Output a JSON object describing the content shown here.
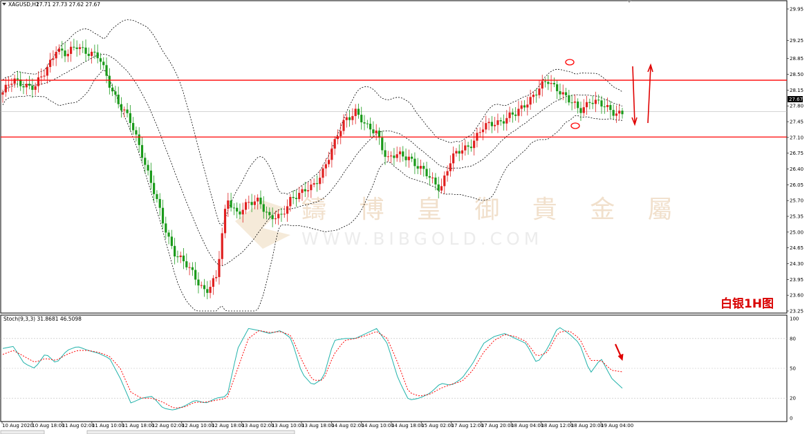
{
  "header": {
    "symbol": "XAGUSD,H1",
    "ohlc": "27.71 27.73 27.62 27.67",
    "indicator": "Stoch(9,3,3) 31.8681 46.5098"
  },
  "annotation": {
    "title": "白银1H图"
  },
  "watermark": {
    "cn": "鑄 博 皇 御 貴 金 屬",
    "url": "WWW.BIBGOLD.COM"
  },
  "chart_data": [
    {
      "type": "candlestick",
      "instrument": "XAGUSD",
      "timeframe": "H1",
      "y_ticks": [
        "29.95",
        "29.25",
        "28.85",
        "28.50",
        "28.15",
        "27.80",
        "27.45",
        "27.10",
        "26.75",
        "26.40",
        "26.05",
        "25.70",
        "25.35",
        "25.00",
        "24.65",
        "24.30",
        "23.95",
        "23.60",
        "23.25"
      ],
      "ylim": [
        23.2,
        29.95
      ],
      "current_price": "27.67",
      "horizontal_levels": [
        28.37,
        27.11
      ],
      "close_path": [
        28.1,
        28.35,
        28.3,
        28.2,
        28.55,
        29.1,
        28.9,
        29.15,
        29.0,
        28.85,
        28.3,
        27.8,
        27.4,
        26.8,
        26.0,
        25.2,
        24.6,
        24.3,
        24.0,
        23.7,
        23.95,
        25.8,
        25.4,
        25.6,
        25.75,
        25.3,
        25.3,
        25.8,
        25.85,
        26.0,
        26.4,
        26.9,
        27.5,
        27.7,
        27.3,
        27.25,
        26.6,
        26.7,
        26.7,
        26.4,
        26.2,
        26.0,
        26.6,
        26.85,
        27.0,
        27.3,
        27.45,
        27.5,
        27.6,
        27.9,
        28.1,
        28.35,
        28.2,
        27.9,
        27.7,
        27.95,
        27.8,
        27.7,
        27.65
      ],
      "x_ticks": [
        "10 Aug 2020",
        "10 Aug 18:00",
        "11 Aug 02:00",
        "11 Aug 10:00",
        "11 Aug 18:00",
        "12 Aug 02:00",
        "12 Aug 10:00",
        "12 Aug 18:00",
        "13 Aug 02:00",
        "13 Aug 10:00",
        "13 Aug 18:00",
        "14 Aug 02:00",
        "14 Aug 10:00",
        "14 Aug 18:00",
        "15 Aug 02:00",
        "17 Aug 12:00",
        "17 Aug 20:00",
        "18 Aug 04:00",
        "18 Aug 12:00",
        "18 Aug 20:00",
        "19 Aug 04:00"
      ],
      "colors": {
        "bull": "#e02020",
        "bear": "#1a9a1a",
        "level": "#ff0000",
        "band": "#000000"
      }
    },
    {
      "type": "line",
      "indicator": "Stoch(9,3,3)",
      "main": 31.8681,
      "signal": 46.5098,
      "y_ticks": [
        "100",
        "80",
        "50",
        "20",
        "0"
      ],
      "levels": [
        80,
        50,
        20
      ],
      "ylim": [
        0,
        100
      ],
      "k_path": [
        70,
        72,
        55,
        50,
        65,
        55,
        68,
        72,
        68,
        65,
        60,
        40,
        15,
        20,
        22,
        10,
        8,
        12,
        18,
        15,
        20,
        22,
        70,
        90,
        88,
        85,
        88,
        80,
        45,
        33,
        40,
        78,
        80,
        80,
        85,
        90,
        75,
        40,
        18,
        20,
        25,
        35,
        33,
        40,
        55,
        75,
        82,
        85,
        80,
        75,
        55,
        70,
        92,
        85,
        75,
        45,
        60,
        40,
        30
      ],
      "d_path": [
        64,
        68,
        62,
        56,
        60,
        58,
        64,
        68,
        68,
        66,
        62,
        50,
        26,
        20,
        20,
        16,
        10,
        11,
        16,
        16,
        18,
        20,
        50,
        80,
        88,
        86,
        87,
        83,
        58,
        38,
        38,
        64,
        78,
        80,
        83,
        87,
        80,
        55,
        26,
        22,
        24,
        30,
        34,
        37,
        48,
        66,
        78,
        84,
        82,
        77,
        62,
        66,
        86,
        88,
        80,
        58,
        58,
        48,
        46.5
      ],
      "colors": {
        "main": "#20b2aa",
        "signal": "#ff0000"
      }
    }
  ]
}
